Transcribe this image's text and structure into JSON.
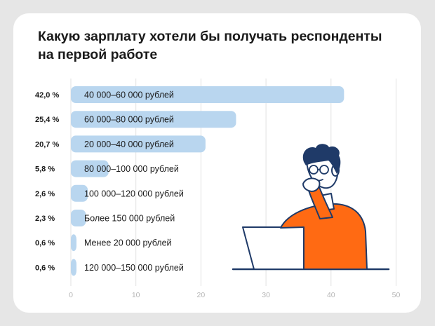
{
  "title": "Какую зарплату хотели бы получать респонденты на первой работе",
  "colors": {
    "bar": "#b9d6ef",
    "grid": "#e1e1e1",
    "tick": "#b5b5b5",
    "text": "#1a1a1a",
    "background": "#e6e6e6",
    "card": "#ffffff"
  },
  "chart_data": {
    "type": "bar",
    "orientation": "horizontal",
    "title": "Какую зарплату хотели бы получать респонденты на первой работе",
    "xlabel": "",
    "ylabel": "",
    "xlim": [
      0,
      50
    ],
    "x_ticks": [
      0,
      10,
      20,
      30,
      40,
      50
    ],
    "grid": true,
    "categories": [
      "40 000–60 000 рублей",
      "60 000–80 000 рублей",
      "20 000–40 000 рублей",
      "80 000–100 000 рублей",
      "100 000–120 000 рублей",
      "Более 150 000 рублей",
      "Менее 20 000 рублей",
      "120 000–150 000 рублей"
    ],
    "values": [
      42.0,
      25.4,
      20.7,
      5.8,
      2.6,
      2.3,
      0.6,
      0.6
    ],
    "value_labels": [
      "42,0 %",
      "25,4 %",
      "20,7 %",
      "5,8 %",
      "2,6 %",
      "2,3 %",
      "0,6 %",
      "0,6 %"
    ]
  },
  "illustration": {
    "icon": "person-thinking-at-laptop-icon"
  }
}
